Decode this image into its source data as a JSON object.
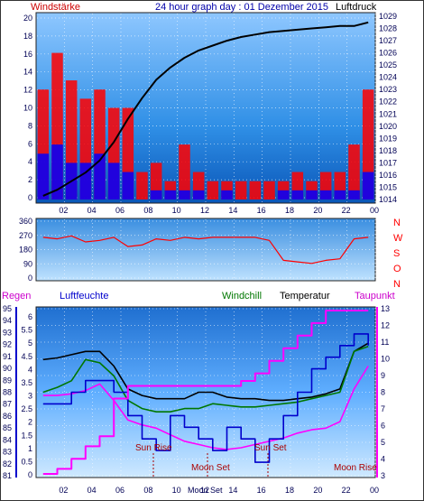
{
  "header": {
    "left_label": "Windstärke",
    "title": "24 hour graph day : 01 Dezember 2015",
    "right_label": "Luftdruck"
  },
  "panel1": {
    "ylim_left": [
      0,
      20
    ],
    "left_ticks": [
      "20",
      "18",
      "16",
      "14",
      "12",
      "10",
      "8",
      "6",
      "4",
      "2",
      "0"
    ],
    "ylim_right": [
      1014,
      1029
    ],
    "right_ticks": [
      "1029",
      "1028",
      "1027",
      "1026",
      "1025",
      "1024",
      "1023",
      "1022",
      "1021",
      "1020",
      "1019",
      "1018",
      "1017",
      "1016",
      "1015",
      "1014"
    ],
    "x_ticks": [
      "02",
      "04",
      "06",
      "08",
      "10",
      "12",
      "14",
      "16",
      "18",
      "20",
      "22",
      "00"
    ]
  },
  "panel2": {
    "ylim_left": [
      0,
      360
    ],
    "left_ticks": [
      "360",
      "270",
      "180",
      "90",
      "0"
    ],
    "right_labels": [
      "N",
      "W",
      "S",
      "O",
      "N"
    ],
    "colors": {
      "labels": "#ff0000"
    }
  },
  "panel3": {
    "legend": {
      "regen": "Regen",
      "luftfeuchte": "Luftfeuchte",
      "windchill": "Windchill",
      "temperatur": "Temperatur",
      "taupunkt": "Taupunkt"
    },
    "humidity_ticks": [
      "95",
      "94",
      "93",
      "92",
      "91",
      "90",
      "89",
      "88",
      "87",
      "86",
      "85",
      "84",
      "83",
      "82",
      "81"
    ],
    "rain_ticks": [
      "6",
      "5.5",
      "5",
      "4.5",
      "4",
      "3.5",
      "3",
      "2.5",
      "2",
      "1.5",
      "1",
      "0.5",
      "0"
    ],
    "temp_ticks": [
      "13",
      "12",
      "11",
      "10",
      "9",
      "8",
      "7",
      "6",
      "5",
      "4",
      "3"
    ],
    "x_ticks": [
      "02",
      "04",
      "06",
      "08",
      "10",
      "12",
      "14",
      "16",
      "18",
      "20",
      "22",
      "00"
    ],
    "events": {
      "sun_rise": "Sun Rise",
      "moon_set_1": "Moon Set",
      "moon_set_2": "Moon Set",
      "sun_set": "Sun Set",
      "moon_rise": "Moon Rise"
    },
    "colors": {
      "regen": "#ff00ff",
      "luftfeuchte": "#0000cc",
      "windchill": "#007700",
      "temperatur": "#000000",
      "taupunkt": "#ff00ff"
    }
  },
  "chart_data": [
    {
      "type": "line",
      "title": "24 hour graph day : 01 Dezember 2015",
      "ylabel_left": "Windstärke",
      "ylabel_right": "Luftdruck",
      "ylim_left": [
        0,
        20
      ],
      "ylim_right": [
        1014,
        1029
      ],
      "x": [
        "01",
        "02",
        "03",
        "04",
        "05",
        "06",
        "07",
        "08",
        "09",
        "10",
        "11",
        "12",
        "13",
        "14",
        "15",
        "16",
        "17",
        "18",
        "19",
        "20",
        "21",
        "22",
        "23",
        "00"
      ],
      "series": [
        {
          "name": "Luftdruck",
          "color": "#000000",
          "axis": "right",
          "values": [
            1014.3,
            1014.8,
            1015.5,
            1016.2,
            1017.2,
            1018.7,
            1020.6,
            1022.3,
            1023.8,
            1024.8,
            1025.6,
            1026.2,
            1026.6,
            1027.0,
            1027.3,
            1027.5,
            1027.7,
            1027.8,
            1027.9,
            1028.0,
            1028.1,
            1028.2,
            1028.2,
            1028.5
          ]
        },
        {
          "color": "#ff0000",
          "axis": "left",
          "values": [
            12,
            16,
            13,
            11,
            12,
            10,
            10,
            3,
            4,
            2,
            6,
            3,
            2,
            2,
            2,
            2,
            2,
            2,
            3,
            2,
            3,
            3,
            6,
            12
          ]
        },
        {
          "color": "#0000ff",
          "axis": "left",
          "values": [
            5,
            6,
            4,
            4,
            5,
            4,
            3,
            0,
            1,
            1,
            1,
            1,
            0,
            1,
            0,
            0,
            0,
            1,
            1,
            1,
            1,
            1,
            1,
            3
          ]
        }
      ]
    },
    {
      "type": "line",
      "ylim": [
        0,
        360
      ],
      "x": [
        "01",
        "02",
        "03",
        "04",
        "05",
        "06",
        "07",
        "08",
        "09",
        "10",
        "11",
        "12",
        "13",
        "14",
        "15",
        "16",
        "17",
        "18",
        "19",
        "20",
        "21",
        "22",
        "23",
        "00"
      ],
      "series": [
        {
          "color": "#ff0000",
          "values": [
            260,
            250,
            270,
            230,
            240,
            260,
            200,
            210,
            250,
            240,
            260,
            250,
            260,
            260,
            260,
            260,
            240,
            110,
            100,
            90,
            110,
            120,
            250,
            260
          ]
        }
      ]
    },
    {
      "type": "line",
      "x": [
        "01",
        "02",
        "03",
        "04",
        "05",
        "06",
        "07",
        "08",
        "09",
        "10",
        "11",
        "12",
        "13",
        "14",
        "15",
        "16",
        "17",
        "18",
        "19",
        "20",
        "21",
        "22",
        "23",
        "00"
      ],
      "ylim_humidity": [
        81,
        95
      ],
      "ylim_rain": [
        0,
        6.5
      ],
      "ylim_temp": [
        3,
        13
      ],
      "series": [
        {
          "name": "Temperatur",
          "color": "#000000",
          "axis": "temp",
          "values": [
            10.0,
            10.1,
            10.3,
            10.5,
            10.5,
            9.6,
            8.2,
            7.8,
            7.6,
            7.6,
            7.6,
            8.0,
            8.0,
            7.7,
            7.6,
            7.6,
            7.5,
            7.5,
            7.6,
            7.7,
            7.9,
            8.2,
            10.5,
            11.0
          ]
        },
        {
          "name": "Windchill",
          "color": "#007700",
          "axis": "temp",
          "values": [
            8.0,
            8.3,
            8.7,
            10.0,
            9.8,
            9.0,
            7.5,
            7.0,
            6.8,
            6.8,
            7.0,
            7.0,
            7.3,
            7.2,
            7.1,
            7.1,
            7.2,
            7.3,
            7.4,
            7.6,
            7.8,
            8.0,
            10.5,
            10.8
          ]
        },
        {
          "name": "Taupunkt",
          "color": "#ff00ff",
          "axis": "temp",
          "values": [
            7.8,
            7.8,
            7.9,
            8.1,
            8.5,
            7.5,
            6.3,
            6.0,
            5.8,
            5.4,
            5.0,
            4.8,
            4.6,
            4.5,
            4.6,
            4.8,
            5.0,
            5.2,
            5.5,
            5.7,
            5.8,
            6.2,
            8.2,
            9.6
          ]
        },
        {
          "name": "Luftfeuchte",
          "color": "#0000cc",
          "axis": "humidity",
          "values": [
            87,
            87,
            88,
            89,
            89,
            88,
            86,
            84,
            83,
            86,
            85,
            84,
            83,
            85,
            84,
            82,
            84,
            86,
            88,
            90,
            91,
            92,
            93,
            92
          ]
        },
        {
          "name": "Regen",
          "color": "#ff00ff",
          "axis": "rain",
          "values": [
            0,
            0.2,
            0.6,
            1.1,
            1.5,
            3.0,
            3.5,
            3.5,
            3.5,
            3.5,
            3.5,
            3.5,
            3.5,
            3.5,
            3.7,
            4.0,
            4.5,
            5.0,
            5.5,
            6.0,
            6.5,
            6.5,
            6.5,
            6.5
          ]
        }
      ]
    }
  ]
}
